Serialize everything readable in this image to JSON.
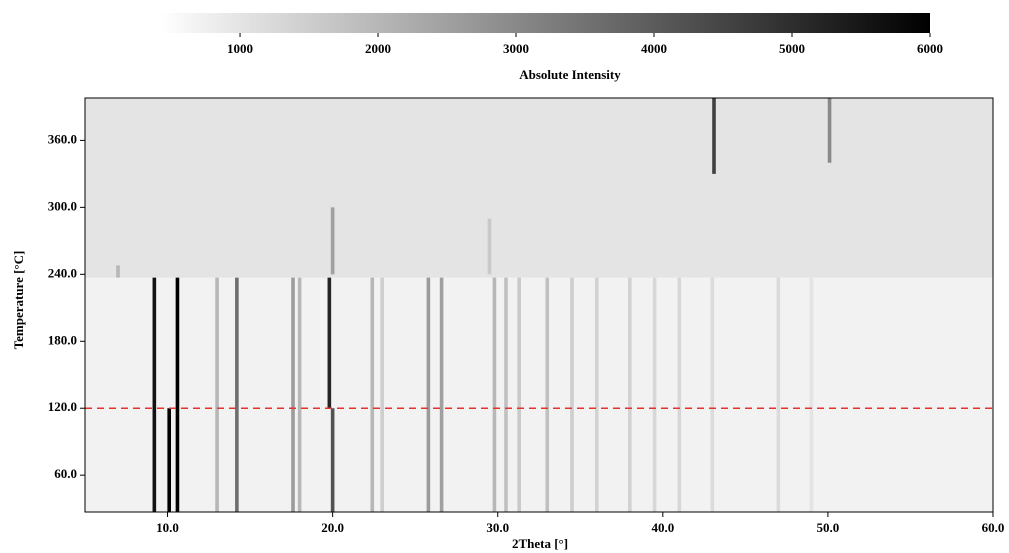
{
  "chart_data": {
    "type": "heatmap",
    "xlabel": "2Theta [°]",
    "ylabel": "Temperature [°C]",
    "xlim": [
      5,
      60
    ],
    "ylim": [
      27,
      398
    ],
    "xticks": [
      {
        "value": 10,
        "label": "10.0"
      },
      {
        "value": 20,
        "label": "20.0"
      },
      {
        "value": 30,
        "label": "30.0"
      },
      {
        "value": 40,
        "label": "40.0"
      },
      {
        "value": 50,
        "label": "50.0"
      },
      {
        "value": 60,
        "label": "60.0"
      }
    ],
    "yticks": [
      {
        "value": 60,
        "label": "60.0"
      },
      {
        "value": 120,
        "label": "120.0"
      },
      {
        "value": 180,
        "label": "180.0"
      },
      {
        "value": 240,
        "label": "240.0"
      },
      {
        "value": 300,
        "label": "300.0"
      },
      {
        "value": 360,
        "label": "360.0"
      }
    ],
    "colorbar": {
      "label": "Absolute Intensity",
      "clim": [
        420,
        6000
      ],
      "ticks": [
        1000,
        2000,
        3000,
        4000,
        5000,
        6000
      ],
      "colors": [
        "#ffffff",
        "#000000"
      ]
    },
    "regions": [
      {
        "t": [
          27,
          237
        ],
        "intensity": 700
      },
      {
        "t": [
          237,
          398
        ],
        "intensity": 1000
      }
    ],
    "peaks": [
      {
        "x": 9.2,
        "t": [
          27,
          237
        ],
        "intensity": 5600
      },
      {
        "x": 10.1,
        "t": [
          27,
          120
        ],
        "intensity": 6000
      },
      {
        "x": 10.6,
        "t": [
          27,
          237
        ],
        "intensity": 6000
      },
      {
        "x": 13.0,
        "t": [
          27,
          237
        ],
        "intensity": 2000
      },
      {
        "x": 14.2,
        "t": [
          27,
          237
        ],
        "intensity": 3600
      },
      {
        "x": 17.6,
        "t": [
          27,
          237
        ],
        "intensity": 2600
      },
      {
        "x": 18.0,
        "t": [
          27,
          237
        ],
        "intensity": 2000
      },
      {
        "x": 19.8,
        "t": [
          120,
          237
        ],
        "intensity": 5200
      },
      {
        "x": 20.0,
        "t": [
          27,
          120
        ],
        "intensity": 4200
      },
      {
        "x": 22.4,
        "t": [
          27,
          237
        ],
        "intensity": 2000
      },
      {
        "x": 23.0,
        "t": [
          27,
          237
        ],
        "intensity": 1500
      },
      {
        "x": 25.8,
        "t": [
          27,
          237
        ],
        "intensity": 2600
      },
      {
        "x": 26.6,
        "t": [
          27,
          237
        ],
        "intensity": 2500
      },
      {
        "x": 29.8,
        "t": [
          27,
          237
        ],
        "intensity": 2000
      },
      {
        "x": 30.5,
        "t": [
          27,
          237
        ],
        "intensity": 1800
      },
      {
        "x": 31.3,
        "t": [
          27,
          237
        ],
        "intensity": 1600
      },
      {
        "x": 33.0,
        "t": [
          27,
          237
        ],
        "intensity": 1800
      },
      {
        "x": 34.5,
        "t": [
          27,
          237
        ],
        "intensity": 1500
      },
      {
        "x": 36.0,
        "t": [
          27,
          237
        ],
        "intensity": 1400
      },
      {
        "x": 38.0,
        "t": [
          27,
          237
        ],
        "intensity": 1400
      },
      {
        "x": 39.5,
        "t": [
          27,
          237
        ],
        "intensity": 1300
      },
      {
        "x": 41.0,
        "t": [
          27,
          237
        ],
        "intensity": 1300
      },
      {
        "x": 43.0,
        "t": [
          27,
          237
        ],
        "intensity": 1200
      },
      {
        "x": 47.0,
        "t": [
          27,
          237
        ],
        "intensity": 1200
      },
      {
        "x": 49.0,
        "t": [
          27,
          237
        ],
        "intensity": 1000
      },
      {
        "x": 43.1,
        "t": [
          330,
          398
        ],
        "intensity": 4600
      },
      {
        "x": 50.1,
        "t": [
          340,
          398
        ],
        "intensity": 3000
      },
      {
        "x": 20.0,
        "t": [
          240,
          300
        ],
        "intensity": 2500
      },
      {
        "x": 29.5,
        "t": [
          240,
          290
        ],
        "intensity": 1600
      },
      {
        "x": 7.0,
        "t": [
          237,
          248
        ],
        "intensity": 2000
      }
    ],
    "hline": {
      "value": 120,
      "color": "#e8302c"
    }
  }
}
